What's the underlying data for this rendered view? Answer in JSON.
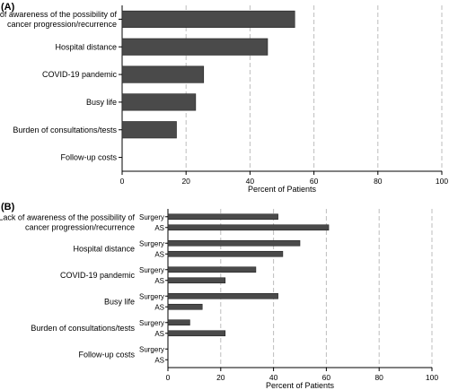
{
  "chart_data": [
    {
      "type": "bar",
      "panel": "(A)",
      "orientation": "horizontal",
      "categories": [
        [
          "Lack of awareness of the possibility of",
          "cancer progression/recurrence"
        ],
        [
          "Hospital distance"
        ],
        [
          "COVID-19 pandemic"
        ],
        [
          "Busy life"
        ],
        [
          "Burden of consultations/tests"
        ],
        [
          "Follow-up costs"
        ]
      ],
      "values": [
        54,
        45.5,
        25.5,
        23,
        17,
        0
      ],
      "xlabel": "Percent of Patients",
      "xlim": [
        0,
        100
      ],
      "xticks": [
        0,
        20,
        40,
        60,
        80,
        100
      ],
      "grid": "vertical dashed",
      "bar_color": "#4a4a4a"
    },
    {
      "type": "bar",
      "panel": "(B)",
      "orientation": "horizontal",
      "categories": [
        [
          "Lack of awareness of the possibility of",
          "cancer progression/recurrence"
        ],
        [
          "Hospital distance"
        ],
        [
          "COVID-19 pandemic"
        ],
        [
          "Busy life"
        ],
        [
          "Burden of consultations/tests"
        ],
        [
          "Follow-up costs"
        ]
      ],
      "subgroups": [
        "Surgery",
        "AS"
      ],
      "series": [
        {
          "values": [
            41.7,
            50,
            33.3,
            41.7,
            8.3,
            0
          ]
        },
        {
          "values": [
            60.9,
            43.5,
            21.7,
            13,
            21.7,
            0
          ]
        }
      ],
      "xlabel": "Percent of Patients",
      "xlim": [
        0,
        100
      ],
      "xticks": [
        0,
        20,
        40,
        60,
        80,
        100
      ],
      "grid": "vertical dashed",
      "bar_color": "#4a4a4a"
    }
  ]
}
